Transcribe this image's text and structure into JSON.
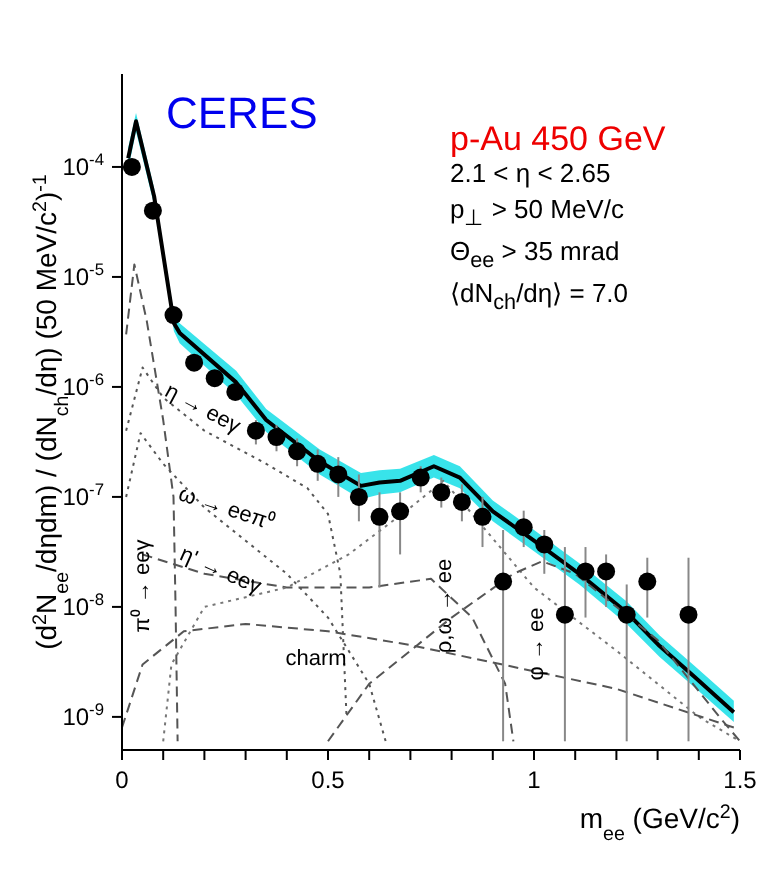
{
  "chart_data": {
    "type": "line",
    "title": "p-Au 450 GeV",
    "xlabel": "m$_{ee}$ (GeV/c$^{2}$)",
    "ylabel": "(d$^{2}$N$_{ee}$/dηdm) / (dN$_{ch}$/dη) (50 MeV/c$^{2}$)$^{-1}$",
    "annotations": [
      "CERES",
      "2.1 < η < 2.65",
      "p$_{⊥}$ > 50 MeV/c",
      "Θ$_{ee}$ > 35 mrad",
      "⟨dN$_{ch}$/dη⟩ = 7.0",
      "η → eeγ",
      "ω → eeπ⁰",
      "η' → eeγ",
      "π⁰ → eeγ",
      "charm",
      "ρ,ω → ee",
      "φ → ee"
    ],
    "xlim": [
      0,
      1.5
    ],
    "xticks": [
      0,
      {
        "value": 0.1,
        "label": null
      },
      {
        "value": 0.2,
        "label": null
      },
      {
        "value": 0.3,
        "label": null
      },
      {
        "value": 0.4,
        "label": null
      },
      0.5,
      {
        "value": 0.6,
        "label": null
      },
      {
        "value": 0.7,
        "label": null
      },
      {
        "value": 0.8,
        "label": null
      },
      {
        "value": 0.9,
        "label": null
      },
      1,
      {
        "value": 1.1,
        "label": null
      },
      {
        "value": 1.2,
        "label": null
      },
      {
        "value": 1.3,
        "label": null
      },
      {
        "value": 1.4,
        "label": null
      },
      1.5
    ],
    "ylim": [
      5e-10,
      0.0007
    ],
    "yticks": [
      {
        "value": 1e-09,
        "label": "10$^{-9}$"
      },
      {
        "value": 1e-08,
        "label": "10$^{-8}$"
      },
      {
        "value": 1e-07,
        "label": "10$^{-7}$"
      },
      {
        "value": 1e-06,
        "label": "10$^{-6}$"
      },
      {
        "value": 1e-05,
        "label": "10$^{-5}$"
      },
      {
        "value": 0.0001,
        "label": "10$^{-4}$"
      }
    ],
    "log": true,
    "series": [
      {
        "type": "scatter",
        "color": "#000000",
        "marker": "circle",
        "x": [
          0.024,
          0.075,
          0.125,
          0.175,
          0.225,
          0.275,
          0.325,
          0.375,
          0.425,
          0.475,
          0.525,
          0.575,
          0.625,
          0.675,
          0.725,
          0.775,
          0.825,
          0.875,
          0.925,
          0.975,
          1.025,
          1.075,
          1.125,
          1.175,
          1.225,
          1.275,
          1.375
        ],
        "values": [
          0.0001,
          4e-05,
          4.5e-06,
          1.66e-06,
          1.2e-06,
          9e-07,
          4e-07,
          3.5e-07,
          2.6e-07,
          2e-07,
          1.6e-07,
          1e-07,
          6.6e-08,
          7.4e-08,
          1.5e-07,
          1.1e-07,
          9e-08,
          6.6e-08,
          1.7e-08,
          5.3e-08,
          3.7e-08,
          8.5e-09,
          2.1e-08,
          2.1e-08,
          8.5e-09,
          1.7e-08,
          8.5e-09
        ],
        "errors": [
          null,
          null,
          null,
          null,
          null,
          null,
          [
            3e-07,
            5e-07
          ],
          [
            2.6e-07,
            4.5e-07
          ],
          [
            1.9e-07,
            3.4e-07
          ],
          [
            1.4e-07,
            2.7e-07
          ],
          [
            1e-07,
            2.3e-07
          ],
          [
            6e-08,
            1.6e-07
          ],
          [
            1.5e-08,
            1.1e-07
          ],
          [
            3e-08,
            1.1e-07
          ],
          [
            1.1e-07,
            1.9e-07
          ],
          [
            8e-08,
            1.5e-07
          ],
          [
            6e-08,
            1.3e-07
          ],
          [
            3.5e-08,
            1e-07
          ],
          [
            6e-10,
            5e-08
          ],
          [
            3.5e-08,
            7.5e-08
          ],
          [
            2e-08,
            5e-08
          ],
          [
            6e-10,
            3.5e-08
          ],
          [
            8e-09,
            3.5e-08
          ],
          [
            1e-08,
            3e-08
          ],
          [
            6e-10,
            1.6e-08
          ],
          [
            8e-09,
            2.8e-08
          ],
          [
            6e-10,
            2.8e-08
          ]
        ]
      },
      {
        "color": "#000000",
        "line_style": "solid",
        "x": [
          0.015,
          0.034,
          0.078,
          0.126,
          0.14,
          0.277,
          0.35,
          0.48,
          0.58,
          0.625,
          0.675,
          0.757,
          0.82,
          0.9,
          1.0,
          1.11,
          1.225,
          1.305,
          1.39,
          1.485
        ],
        "values": [
          0.00012,
          0.00026,
          5.4e-05,
          3.8e-06,
          3.1e-06,
          1.1e-06,
          5e-07,
          2.1e-07,
          1.26e-07,
          1.35e-07,
          1.4e-07,
          1.9e-07,
          1.5e-07,
          7.4e-08,
          4e-08,
          2e-08,
          8.9e-09,
          4.4e-09,
          2.3e-09,
          1.1e-09
        ],
        "lower": [
          9.5e-05,
          0.00021,
          4.5e-05,
          3.2e-06,
          2.5e-06,
          8.5e-07,
          3.9e-07,
          1.6e-07,
          9.5e-08,
          1.05e-07,
          1.1e-07,
          1.5e-07,
          1.2e-07,
          6e-08,
          3.2e-08,
          1.6e-08,
          7e-09,
          3.5e-09,
          1.85e-09,
          9e-10
        ],
        "upper": [
          0.00015,
          0.00031,
          6.4e-05,
          4.6e-06,
          3.8e-06,
          1.4e-06,
          6.3e-07,
          2.7e-07,
          1.65e-07,
          1.75e-07,
          1.8e-07,
          2.4e-07,
          1.9e-07,
          9.3e-08,
          5e-08,
          2.5e-08,
          1.12e-08,
          5.5e-09,
          2.9e-09,
          1.4e-09
        ]
      },
      {
        "color": "#555555",
        "line_style": "dashed",
        "x": [
          0.01,
          0.03,
          0.06,
          0.1,
          0.125,
          0.13,
          0.135
        ],
        "values": [
          3e-06,
          1.3e-05,
          4e-06,
          5e-07,
          1e-07,
          1e-08,
          6e-10
        ]
      },
      {
        "color": "#555555",
        "line_style": "dotted",
        "x": [
          0.01,
          0.05,
          0.1,
          0.2,
          0.35,
          0.45,
          0.5,
          0.53,
          0.545
        ],
        "values": [
          4e-07,
          1.5e-06,
          8e-07,
          4e-07,
          2e-07,
          1.2e-07,
          7e-08,
          2e-08,
          1e-09
        ]
      },
      {
        "color": "#555555",
        "line_style": "dotted",
        "x": [
          0.01,
          0.045,
          0.1,
          0.2,
          0.3,
          0.4,
          0.5,
          0.6,
          0.64
        ],
        "values": [
          1e-07,
          3.8e-07,
          2e-07,
          8e-08,
          4e-08,
          2e-08,
          8e-09,
          2e-09,
          6e-10
        ]
      },
      {
        "color": "#555555",
        "line_style": "dashed",
        "x": [
          0.05,
          0.2,
          0.4,
          0.6,
          0.75,
          0.85,
          0.93,
          0.95
        ],
        "values": [
          3e-08,
          2e-08,
          1.5e-08,
          1.5e-08,
          1.8e-08,
          8e-09,
          2e-09,
          6e-10
        ]
      },
      {
        "color": "#777777",
        "line_style": "dotted",
        "x": [
          0.1,
          0.12,
          0.2,
          0.4,
          0.55,
          0.7,
          0.78,
          0.85,
          1.0,
          1.2,
          1.4,
          1.5
        ],
        "values": [
          6e-10,
          3e-09,
          1e-08,
          1.5e-08,
          3e-08,
          8e-08,
          1.4e-07,
          7e-08,
          1.5e-08,
          4e-09,
          1e-09,
          6e-10
        ]
      },
      {
        "color": "#555555",
        "line_style": "dashed",
        "x": [
          0.5,
          0.6,
          0.8,
          0.95,
          1.02,
          1.1,
          1.3,
          1.45,
          1.5
        ],
        "values": [
          6e-10,
          2e-09,
          8e-09,
          2e-08,
          2.6e-08,
          2e-08,
          5e-09,
          1e-09,
          6e-10
        ]
      },
      {
        "color": "#555555",
        "line_style": "dashed",
        "x": [
          0.0,
          0.05,
          0.15,
          0.3,
          0.5,
          0.7,
          1.0,
          1.2,
          1.485
        ],
        "values": [
          8e-10,
          3e-09,
          6e-09,
          7e-09,
          6e-09,
          4.5e-09,
          2.6e-09,
          1.8e-09,
          8e-10
        ]
      }
    ]
  }
}
